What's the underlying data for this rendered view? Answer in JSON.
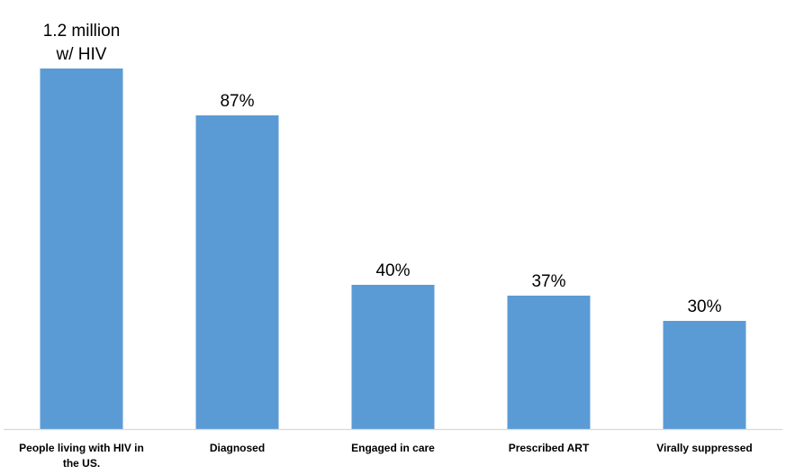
{
  "chart_data": {
    "type": "bar",
    "title": "",
    "xlabel": "",
    "ylabel": "",
    "categories": [
      [
        "People living with HIV in",
        "the US."
      ],
      [
        "Diagnosed"
      ],
      [
        "Engaged in care"
      ],
      [
        "Prescribed ART"
      ],
      [
        "Virally suppressed"
      ]
    ],
    "values": [
      100,
      87,
      40,
      37,
      30
    ],
    "data_labels": [
      [
        "1.2 million",
        "w/ HIV"
      ],
      [
        "87%"
      ],
      [
        "40%"
      ],
      [
        "37%"
      ],
      [
        "30%"
      ]
    ],
    "ylim": [
      0,
      100
    ],
    "grid": false,
    "legend": "none",
    "colors": {
      "bar": "#5B9BD5",
      "axis": "#D9D9D9"
    }
  }
}
